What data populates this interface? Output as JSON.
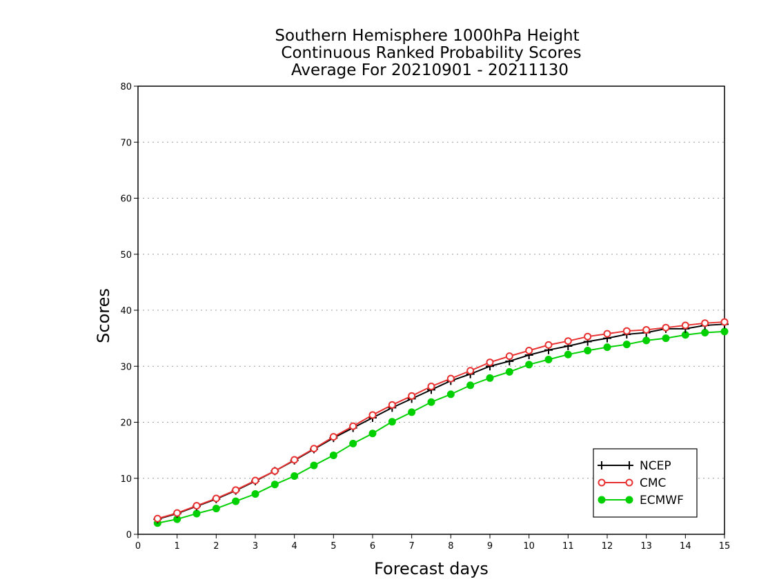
{
  "chart_data": {
    "type": "line",
    "title": [
      "Southern Hemisphere 1000hPa Height",
      "Continuous Ranked Probability Scores",
      "Average For 20210901 - 20211130"
    ],
    "xlabel": "Forecast days",
    "ylabel": "Scores",
    "xlim": [
      0,
      15
    ],
    "ylim": [
      0,
      80
    ],
    "xticks": [
      0,
      1,
      2,
      3,
      4,
      5,
      6,
      7,
      8,
      9,
      10,
      11,
      12,
      13,
      14,
      15
    ],
    "yticks": [
      0,
      10,
      20,
      30,
      40,
      50,
      60,
      70,
      80
    ],
    "grid": "horizontal dotted",
    "legend_position": "bottom-right",
    "x": [
      0.5,
      1,
      1.5,
      2,
      2.5,
      3,
      3.5,
      4,
      4.5,
      5,
      5.5,
      6,
      6.5,
      7,
      7.5,
      8,
      8.5,
      9,
      9.5,
      10,
      10.5,
      11,
      11.5,
      12,
      12.5,
      13,
      13.5,
      14,
      14.5,
      15
    ],
    "series": [
      {
        "name": "NCEP",
        "color": "#000000",
        "marker": "plus",
        "values": [
          2.7,
          3.7,
          5.0,
          6.3,
          7.8,
          9.5,
          11.3,
          13.2,
          15.2,
          17.2,
          19.0,
          20.8,
          22.6,
          24.2,
          25.8,
          27.4,
          28.6,
          30.0,
          30.9,
          32.0,
          32.9,
          33.6,
          34.4,
          35.0,
          35.7,
          36.0,
          36.7,
          36.7,
          37.3,
          37.5
        ]
      },
      {
        "name": "CMC",
        "color": "#e83030",
        "marker": "open-circle",
        "values": [
          2.8,
          3.8,
          5.1,
          6.4,
          7.9,
          9.6,
          11.3,
          13.3,
          15.3,
          17.4,
          19.3,
          21.3,
          23.1,
          24.7,
          26.4,
          27.8,
          29.2,
          30.7,
          31.8,
          32.8,
          33.8,
          34.5,
          35.3,
          35.8,
          36.3,
          36.5,
          36.9,
          37.3,
          37.7,
          37.9
        ]
      },
      {
        "name": "ECMWF",
        "color": "#00d000",
        "marker": "filled-circle",
        "values": [
          2.0,
          2.7,
          3.7,
          4.6,
          5.9,
          7.2,
          8.9,
          10.4,
          12.3,
          14.1,
          16.2,
          18.0,
          20.1,
          21.8,
          23.6,
          25.0,
          26.6,
          27.9,
          29.0,
          30.3,
          31.2,
          32.1,
          32.8,
          33.4,
          33.9,
          34.6,
          35.0,
          35.6,
          36.0,
          36.2
        ]
      }
    ]
  }
}
